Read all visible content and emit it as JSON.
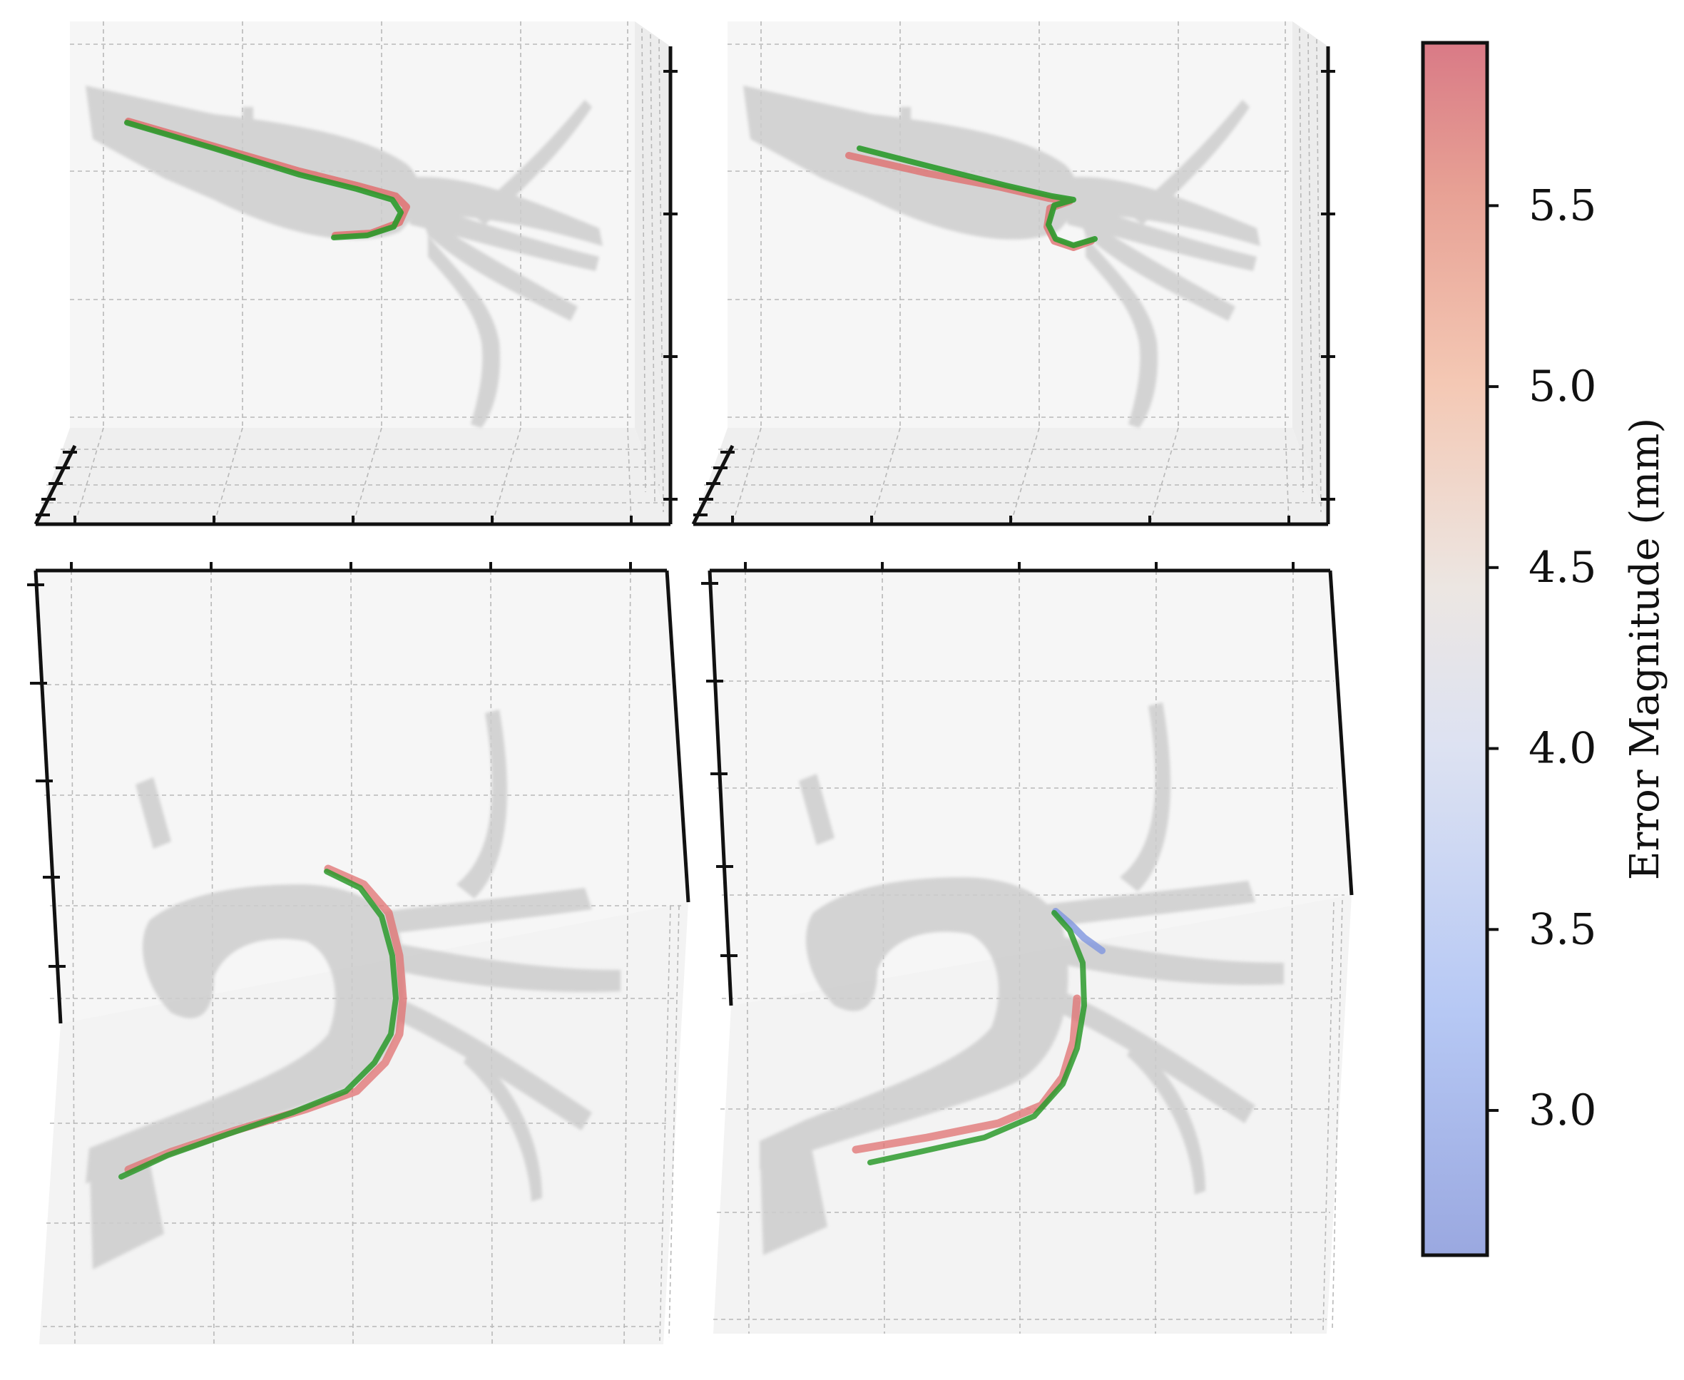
{
  "figure": {
    "panels": [
      {
        "id": "top-left",
        "view": "side"
      },
      {
        "id": "top-right",
        "view": "side"
      },
      {
        "id": "bottom-left",
        "view": "top"
      },
      {
        "id": "bottom-right",
        "view": "top"
      }
    ]
  },
  "chart_data": {
    "type": "scatter",
    "subtype": "3d-catheter-trajectory",
    "colorbar": {
      "label": "Error Magnitude (mm)",
      "colormap": "coolwarm",
      "range": [
        2.6,
        5.95
      ],
      "ticks": [
        3.0,
        3.5,
        4.0,
        4.5,
        5.0,
        5.5
      ],
      "tick_labels": [
        "3.0",
        "3.5",
        "4.0",
        "4.5",
        "5.0",
        "5.5"
      ]
    },
    "colors": {
      "ground_truth": "#1f8a1f",
      "low_error": "#6f86d8",
      "mid_error": "#e8e2dc",
      "high_error": "#d9606c",
      "vessel": "#cfcfcf",
      "grid": "#b5b5b5",
      "pane": "#f4f4f4"
    },
    "grid": true,
    "legend": "none"
  }
}
